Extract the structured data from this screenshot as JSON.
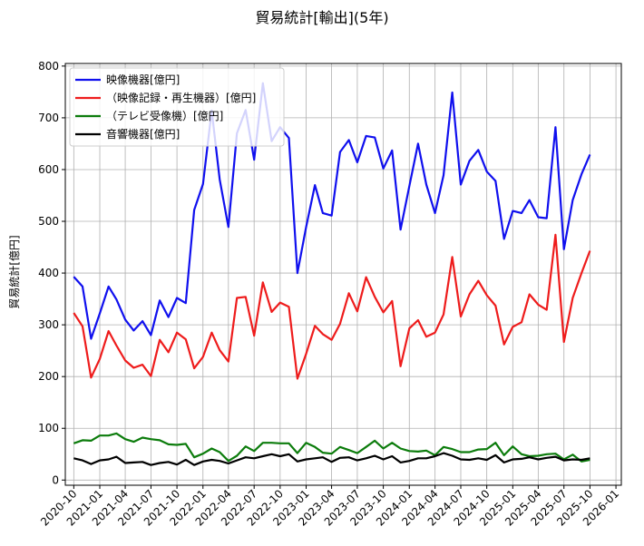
{
  "chart_data": {
    "type": "line",
    "title": "貿易統計[輸出](5年)",
    "xlabel": "",
    "ylabel": "貿易統計[億円]",
    "ylim": [
      -10,
      805
    ],
    "xlim": [
      "2020-09-01",
      "2026-01-20"
    ],
    "grid": true,
    "legend_position": "top-left",
    "yticks": [
      0,
      100,
      200,
      300,
      400,
      500,
      600,
      700,
      800
    ],
    "xticks": [
      "2020-10",
      "2021-01",
      "2021-04",
      "2021-07",
      "2021-10",
      "2022-01",
      "2022-04",
      "2022-07",
      "2022-10",
      "2023-01",
      "2023-04",
      "2023-07",
      "2023-10",
      "2024-01",
      "2024-04",
      "2024-07",
      "2024-10",
      "2025-01",
      "2025-04",
      "2025-07",
      "2025-10",
      "2026-01"
    ],
    "x": [
      "2020-10",
      "2020-11",
      "2020-12",
      "2021-01",
      "2021-02",
      "2021-03",
      "2021-04",
      "2021-05",
      "2021-06",
      "2021-07",
      "2021-08",
      "2021-09",
      "2021-10",
      "2021-11",
      "2021-12",
      "2022-01",
      "2022-02",
      "2022-03",
      "2022-04",
      "2022-05",
      "2022-06",
      "2022-07",
      "2022-08",
      "2022-09",
      "2022-10",
      "2022-11",
      "2022-12",
      "2023-01",
      "2023-02",
      "2023-03",
      "2023-04",
      "2023-05",
      "2023-06",
      "2023-07",
      "2023-08",
      "2023-09",
      "2023-10",
      "2023-11",
      "2023-12",
      "2024-01",
      "2024-02",
      "2024-03",
      "2024-04",
      "2024-05",
      "2024-06",
      "2024-07",
      "2024-08",
      "2024-09",
      "2024-10",
      "2024-11",
      "2024-12",
      "2025-01",
      "2025-02",
      "2025-03",
      "2025-04",
      "2025-05",
      "2025-06",
      "2025-07",
      "2025-08",
      "2025-09",
      "2025-10"
    ],
    "series": [
      {
        "name": "映像機器[億円]",
        "color": "#1010ee",
        "values": [
          393,
          374,
          273,
          322,
          374,
          349,
          310,
          289,
          307,
          280,
          347,
          315,
          352,
          342,
          522,
          572,
          714,
          581,
          489,
          670,
          715,
          619,
          767,
          655,
          682,
          661,
          400,
          489,
          570,
          516,
          511,
          634,
          657,
          614,
          665,
          662,
          602,
          637,
          484,
          568,
          650,
          571,
          516,
          589,
          749,
          571,
          617,
          638,
          596,
          578,
          466,
          520,
          516,
          541,
          508,
          506,
          682,
          446,
          541,
          591,
          629
        ]
      },
      {
        "name": "（映像記録・再生機器）[億円]",
        "color": "#ee1c1c",
        "values": [
          323,
          297,
          198,
          234,
          288,
          260,
          231,
          217,
          223,
          201,
          271,
          247,
          285,
          272,
          216,
          238,
          285,
          251,
          229,
          352,
          354,
          279,
          382,
          325,
          343,
          335,
          196,
          244,
          298,
          282,
          271,
          302,
          361,
          326,
          392,
          354,
          324,
          346,
          220,
          293,
          309,
          277,
          285,
          320,
          431,
          316,
          359,
          385,
          357,
          337,
          262,
          296,
          305,
          359,
          339,
          329,
          474,
          267,
          352,
          400,
          443
        ]
      },
      {
        "name": "（テレビ受像機）[億円]",
        "color": "#0c7c0c",
        "values": [
          71,
          77,
          76,
          86,
          86,
          90,
          79,
          74,
          82,
          79,
          77,
          69,
          68,
          70,
          44,
          51,
          61,
          54,
          37,
          47,
          65,
          56,
          72,
          72,
          71,
          71,
          52,
          72,
          64,
          53,
          51,
          64,
          58,
          52,
          64,
          76,
          61,
          72,
          61,
          56,
          55,
          57,
          48,
          64,
          60,
          54,
          54,
          59,
          60,
          72,
          48,
          65,
          50,
          46,
          47,
          50,
          51,
          40,
          49,
          36,
          39
        ]
      },
      {
        "name": "音響機器[億円]",
        "color": "#000000",
        "values": [
          42,
          38,
          31,
          38,
          40,
          45,
          33,
          34,
          35,
          29,
          33,
          35,
          30,
          39,
          29,
          36,
          39,
          37,
          32,
          38,
          44,
          42,
          46,
          50,
          46,
          50,
          36,
          40,
          42,
          44,
          35,
          43,
          44,
          38,
          42,
          47,
          40,
          46,
          34,
          37,
          42,
          42,
          46,
          52,
          47,
          40,
          39,
          42,
          39,
          48,
          34,
          40,
          41,
          44,
          40,
          43,
          45,
          38,
          40,
          39,
          42
        ]
      }
    ]
  }
}
